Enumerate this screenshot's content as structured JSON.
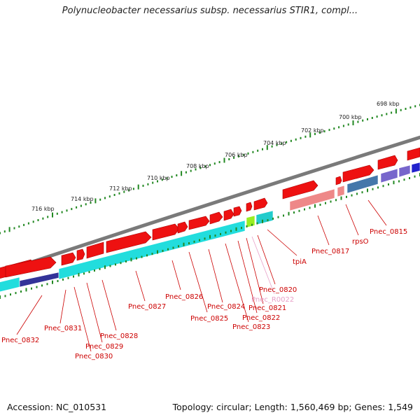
{
  "title": "Polynucleobacter necessarius subsp. necessarius STIR1, compl...",
  "footer": {
    "accession": "Accession: NC_010531",
    "summary": "Topology: circular; Length: 1,560,469 bp; Genes: 1,549"
  },
  "ruler": {
    "color": "#228822",
    "ticks": [
      "698 kbp",
      "700 kbp",
      "702 kbp",
      "704 kbp",
      "706 kbp",
      "708 kbp",
      "710 kbp",
      "712 kbp",
      "714 kbp",
      "716 kbp"
    ]
  },
  "genes": [
    {
      "label": "Pnec_0815",
      "color": "#cc0000"
    },
    {
      "label": "rpsO",
      "color": "#cc0000"
    },
    {
      "label": "Pnec_0817",
      "color": "#cc0000"
    },
    {
      "label": "tpiA",
      "color": "#cc0000"
    },
    {
      "label": "Pnec_0820",
      "color": "#cc0000"
    },
    {
      "label": "Pnec_R0022",
      "color": "#e8a0c8"
    },
    {
      "label": "Pnec_0821",
      "color": "#cc0000"
    },
    {
      "label": "Pnec_0822",
      "color": "#cc0000"
    },
    {
      "label": "Pnec_0823",
      "color": "#cc0000"
    },
    {
      "label": "Pnec_0824",
      "color": "#cc0000"
    },
    {
      "label": "Pnec_0825",
      "color": "#cc0000"
    },
    {
      "label": "Pnec_0826",
      "color": "#cc0000"
    },
    {
      "label": "Pnec_0827",
      "color": "#cc0000"
    },
    {
      "label": "Pnec_0828",
      "color": "#cc0000"
    },
    {
      "label": "Pnec_0829",
      "color": "#cc0000"
    },
    {
      "label": "Pnec_0830",
      "color": "#cc0000"
    },
    {
      "label": "Pnec_0831",
      "color": "#cc0000"
    },
    {
      "label": "Pnec_0832",
      "color": "#cc0000"
    }
  ],
  "colors": {
    "backbone": "#7a7a7a",
    "gene_forward": "#ee1111",
    "cog_cyan": "#22dddd",
    "cog_pink": "#ee8888",
    "cog_blue": "#4477aa",
    "cog_purple": "#7766cc",
    "cog_green": "#99ee22",
    "cog_navy": "#333399"
  }
}
